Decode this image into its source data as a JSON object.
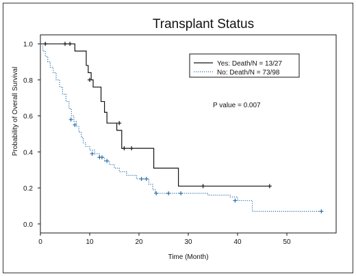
{
  "chart_data": {
    "type": "line",
    "subtype": "kaplan-meier",
    "title": "Transplant Status",
    "xlabel": "Time (Month)",
    "ylabel": "Probability of Overall Survival",
    "xlim": [
      0,
      60
    ],
    "ylim": [
      -0.05,
      1.05
    ],
    "x_ticks": [
      0,
      10,
      20,
      30,
      40,
      50
    ],
    "y_ticks": [
      0.0,
      0.2,
      0.4,
      0.6,
      0.8,
      1.0
    ],
    "y_tick_labels": [
      "0.0",
      "0.2",
      "0.4",
      "0.6",
      "0.8",
      "1.0"
    ],
    "grid": false,
    "legend_position": "top-right",
    "annotation": "P value = 0.007",
    "series": [
      {
        "name": "Yes: Death/N = 13/27",
        "color": "#111111",
        "line_style": "solid",
        "steps": [
          [
            0,
            1.0
          ],
          [
            7,
            0.96
          ],
          [
            9.3,
            0.88
          ],
          [
            9.7,
            0.84
          ],
          [
            10.3,
            0.8
          ],
          [
            10.7,
            0.76
          ],
          [
            12.3,
            0.68
          ],
          [
            13,
            0.62
          ],
          [
            13.5,
            0.56
          ],
          [
            15.5,
            0.52
          ],
          [
            16.5,
            0.42
          ],
          [
            23,
            0.31
          ],
          [
            28,
            0.21
          ],
          [
            46.5,
            0.21
          ]
        ],
        "censored": [
          [
            1,
            1.0
          ],
          [
            5,
            1.0
          ],
          [
            6,
            1.0
          ],
          [
            10,
            0.8
          ],
          [
            16,
            0.56
          ],
          [
            17,
            0.42
          ],
          [
            18.5,
            0.42
          ],
          [
            33,
            0.21
          ],
          [
            46.5,
            0.21
          ]
        ]
      },
      {
        "name": "No: Death/N = 73/98",
        "color": "#2a6fa8",
        "line_style": "dotted",
        "steps": [
          [
            0,
            1.0
          ],
          [
            0.5,
            0.96
          ],
          [
            1,
            0.93
          ],
          [
            1.5,
            0.9
          ],
          [
            2,
            0.87
          ],
          [
            2.6,
            0.84
          ],
          [
            3.2,
            0.8
          ],
          [
            3.9,
            0.76
          ],
          [
            4.5,
            0.72
          ],
          [
            5.2,
            0.68
          ],
          [
            5.8,
            0.64
          ],
          [
            6.3,
            0.6
          ],
          [
            6.8,
            0.57
          ],
          [
            7.3,
            0.54
          ],
          [
            7.8,
            0.51
          ],
          [
            8.3,
            0.48
          ],
          [
            8.7,
            0.45
          ],
          [
            9.2,
            0.43
          ],
          [
            10,
            0.41
          ],
          [
            11,
            0.39
          ],
          [
            12,
            0.37
          ],
          [
            13,
            0.35
          ],
          [
            14,
            0.33
          ],
          [
            15,
            0.31
          ],
          [
            16,
            0.29
          ],
          [
            17.5,
            0.27
          ],
          [
            19.5,
            0.25
          ],
          [
            22,
            0.22
          ],
          [
            22.8,
            0.19
          ],
          [
            23.3,
            0.17
          ],
          [
            34,
            0.16
          ],
          [
            38.5,
            0.15
          ],
          [
            40,
            0.13
          ],
          [
            43,
            0.07
          ],
          [
            57,
            0.07
          ]
        ],
        "censored": [
          [
            6.2,
            0.58
          ],
          [
            7,
            0.55
          ],
          [
            10.5,
            0.39
          ],
          [
            12,
            0.37
          ],
          [
            12.5,
            0.37
          ],
          [
            13.5,
            0.35
          ],
          [
            20.5,
            0.25
          ],
          [
            21.5,
            0.25
          ],
          [
            23.5,
            0.17
          ],
          [
            26,
            0.17
          ],
          [
            28.5,
            0.17
          ],
          [
            39.5,
            0.13
          ],
          [
            57,
            0.07
          ]
        ]
      }
    ]
  }
}
